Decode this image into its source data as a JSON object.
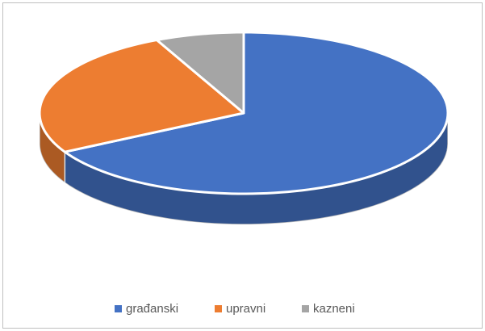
{
  "chart_data": {
    "type": "pie",
    "categories": [
      "građanski",
      "upravni",
      "kazneni"
    ],
    "values": [
      67,
      26,
      7
    ],
    "colors": [
      "#4472c4",
      "#ed7d31",
      "#a5a5a5"
    ],
    "legend": "bottom"
  }
}
